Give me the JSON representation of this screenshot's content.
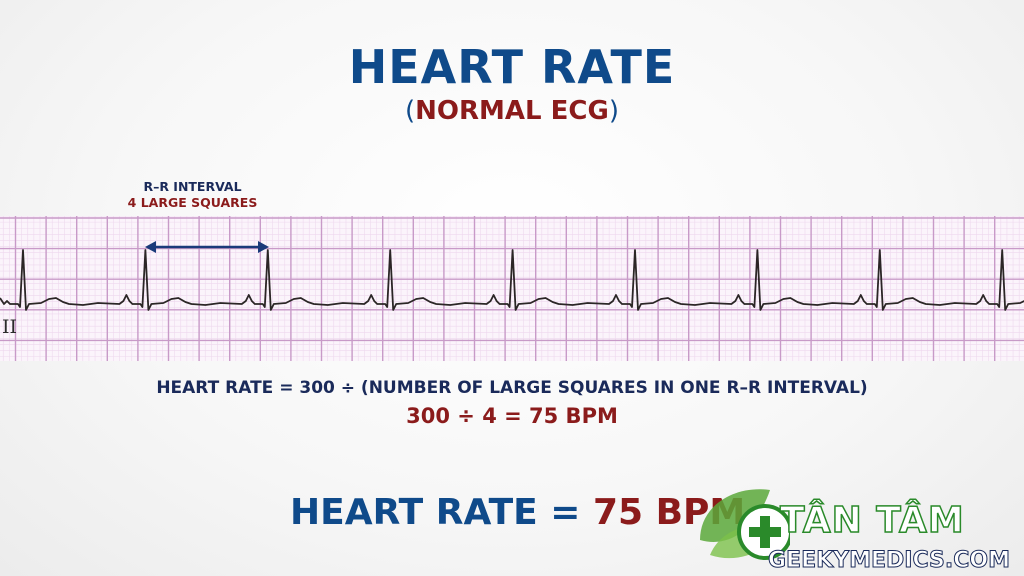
{
  "title": "HEART RATE",
  "subtitle": {
    "open": "(",
    "text": "NORMAL ECG",
    "close": ")"
  },
  "rr_annotation": {
    "line1": "R–R INTERVAL",
    "line2": "4 LARGE SQUARES"
  },
  "lead_label": "II",
  "formula": "HEART RATE = 300 ÷ (NUMBER OF LARGE SQUARES IN ONE R–R INTERVAL)",
  "calculation": "300 ÷ 4 = 75 BPM",
  "result": {
    "label": "HEART RATE = ",
    "value": "75 BPM"
  },
  "watermark": {
    "brand": "TÂN TÂM",
    "site": "GEEKYMEDICS.COM"
  },
  "colors": {
    "title_blue": "#0f4a8a",
    "accent_red": "#8b1b1b",
    "navy": "#1a2a5a",
    "grid_major": "#c89ac8",
    "grid_minor": "#eed8ee",
    "trace": "#2b2626"
  },
  "ecg": {
    "large_squares_per_rr": 4,
    "beats": 9
  }
}
